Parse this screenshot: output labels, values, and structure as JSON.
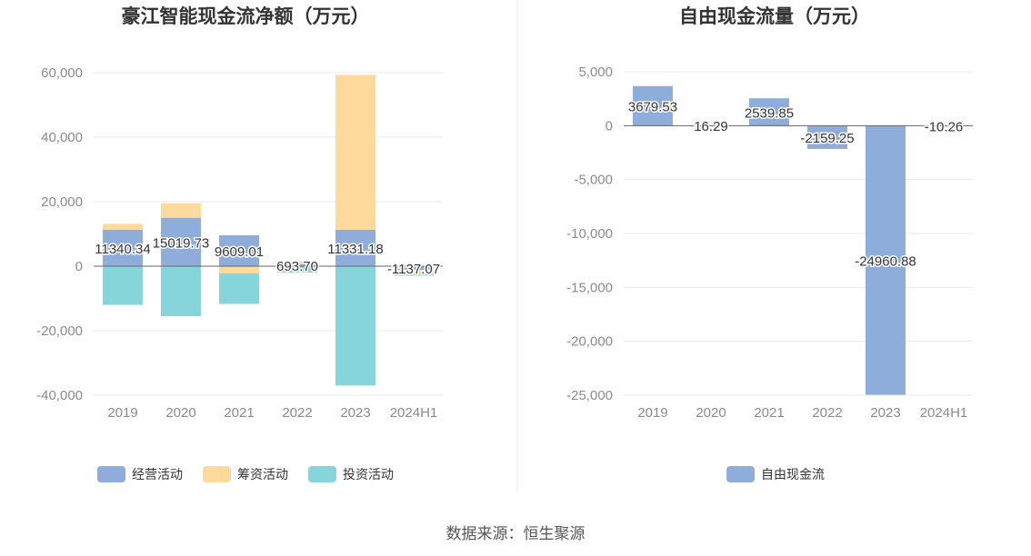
{
  "chart_data": [
    {
      "type": "bar",
      "stacked": true,
      "title": "豪江智能现金流净额（万元）",
      "categories": [
        "2019",
        "2020",
        "2021",
        "2022",
        "2023",
        "2024H1"
      ],
      "series": [
        {
          "name": "经营活动",
          "color": "#8eaddb",
          "values": [
            11340.34,
            15019.73,
            9609.01,
            693.7,
            11331.18,
            -1137.07
          ],
          "labels": [
            "11340.34",
            "15019.73",
            "9609.01",
            "693.70",
            "11331.18",
            "-1137.07"
          ]
        },
        {
          "name": "筹资活动",
          "color": "#fdd99b",
          "values": [
            1800,
            4500,
            -2200,
            900,
            48000,
            -1500
          ]
        },
        {
          "name": "投资活动",
          "color": "#86d5da",
          "values": [
            -12000,
            -15500,
            -9500,
            -2000,
            -37000,
            -300
          ]
        }
      ],
      "yticks": [
        "60,000",
        "40,000",
        "20,000",
        "0",
        "-20,000",
        "-40,000"
      ],
      "ylim": [
        -40000,
        60000
      ],
      "legend_position": "bottom"
    },
    {
      "type": "bar",
      "title": "自由现金流量（万元）",
      "categories": [
        "2019",
        "2020",
        "2021",
        "2022",
        "2023",
        "2024H1"
      ],
      "series": [
        {
          "name": "自由现金流",
          "color": "#8eaddb",
          "values": [
            3679.53,
            16.29,
            2539.85,
            -2159.25,
            -24960.88,
            -10.26
          ],
          "labels": [
            "3679.53",
            "16.29",
            "2539.85",
            "-2159.25",
            "-24960.88",
            "-10.26"
          ]
        }
      ],
      "yticks": [
        "5,000",
        "0",
        "-5,000",
        "-10,000",
        "-15,000",
        "-20,000",
        "-25,000"
      ],
      "ylim": [
        -25000,
        5000
      ],
      "legend_position": "bottom"
    }
  ],
  "source": "数据来源：恒生聚源"
}
